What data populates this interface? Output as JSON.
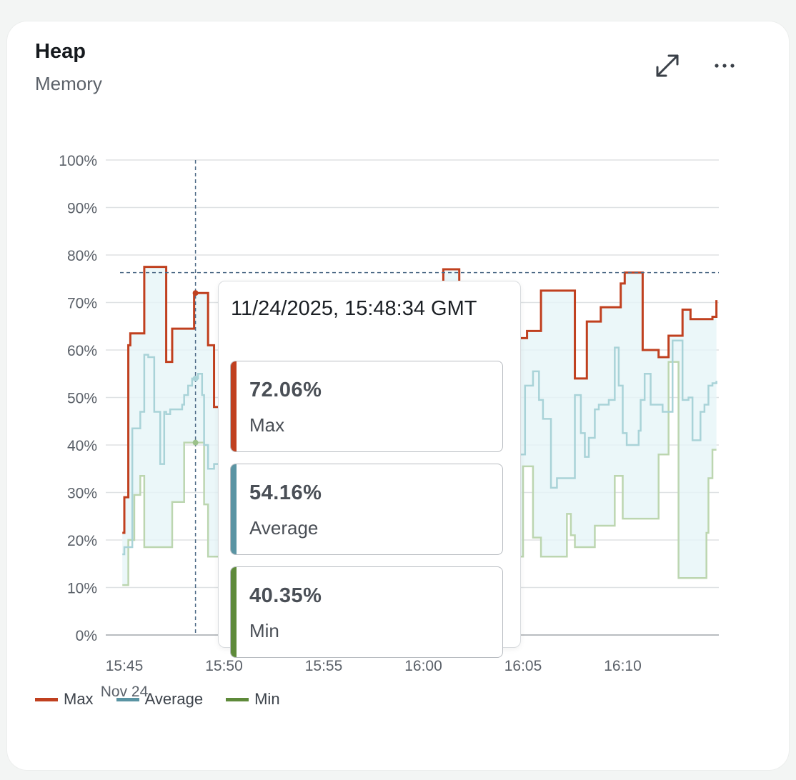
{
  "card": {
    "title": "Heap",
    "subtitle": "Memory"
  },
  "toolbar": {
    "expand_icon": "expand-arrows-icon",
    "more_icon": "more-dots-icon"
  },
  "colors": {
    "max": "#c0401f",
    "average": "#5a94a3",
    "min": "#5e8a3a",
    "fill": "#e6f5f7",
    "grid": "#dfe2e4",
    "crosshair": "#4d6a86"
  },
  "chart_data": {
    "type": "line",
    "ylim": [
      0,
      100
    ],
    "y_ticks": [
      "0%",
      "10%",
      "20%",
      "30%",
      "40%",
      "50%",
      "60%",
      "70%",
      "80%",
      "90%",
      "100%"
    ],
    "x_ticks": [
      {
        "t": 0,
        "label": "15:45",
        "sub": "Nov 24"
      },
      {
        "t": 5,
        "label": "15:50",
        "sub": ""
      },
      {
        "t": 10,
        "label": "15:55",
        "sub": ""
      },
      {
        "t": 15,
        "label": "16:00",
        "sub": ""
      },
      {
        "t": 20,
        "label": "16:05",
        "sub": ""
      },
      {
        "t": 25,
        "label": "16:10",
        "sub": ""
      }
    ],
    "x_unit": "minutes since 15:45",
    "xlim": [
      -0.2,
      29.7
    ],
    "crosshair": {
      "x": 3.57,
      "y": 76.3
    },
    "series": [
      {
        "name": "Max",
        "key": "max",
        "x": [
          -0.1,
          0,
          0.2,
          0.3,
          0.9,
          1,
          2,
          2.1,
          2.4,
          3.4,
          3.5,
          4.1,
          4.2,
          4.5,
          4.8,
          5.3,
          16,
          16.8,
          17.6,
          18.2,
          18.5,
          19.1,
          19.4,
          19.8,
          20.2,
          20.9,
          21.9,
          22.6,
          23,
          23.2,
          23.9,
          24.2,
          24.9,
          25.1,
          25.6,
          25.8,
          26,
          26.2,
          26.8,
          27.3,
          28,
          28.4,
          29.5,
          29.7
        ],
        "y": [
          21.5,
          29,
          61,
          63.5,
          63.5,
          77.5,
          77.5,
          57.5,
          64.5,
          64.5,
          72,
          72,
          61,
          48,
          51.5,
          51.5,
          77,
          73,
          69,
          69,
          66.5,
          66.5,
          62.5,
          62.5,
          64,
          72.5,
          72.5,
          54,
          54,
          66,
          69,
          69,
          74,
          76.3,
          76.3,
          76.3,
          60,
          60,
          58.5,
          63,
          68.5,
          66.5,
          67,
          70.5
        ]
      },
      {
        "name": "Average",
        "key": "average",
        "x": [
          -0.1,
          0,
          0.2,
          0.4,
          0.8,
          1,
          1.2,
          1.5,
          1.8,
          2,
          2.1,
          2.3,
          2.6,
          2.9,
          3,
          3.2,
          3.4,
          3.5,
          3.7,
          3.9,
          4,
          4.2,
          4.5,
          4.8,
          5.3,
          20.1,
          20.5,
          20.8,
          21,
          21.4,
          21.5,
          21.7,
          22.4,
          22.6,
          22.9,
          23.1,
          23.3,
          23.6,
          23.8,
          24.3,
          24.6,
          24.8,
          25,
          25.2,
          25.4,
          25.8,
          25.9,
          26.1,
          26.4,
          27,
          27.5,
          28,
          28.3,
          28.5,
          28.9,
          29.1,
          29.3,
          29.5,
          29.7
        ],
        "y": [
          17,
          18.5,
          18.5,
          43.5,
          47,
          59,
          58.5,
          47,
          36,
          47,
          46.5,
          47.5,
          47.5,
          48.5,
          50.5,
          52.5,
          54,
          54,
          55,
          50.5,
          40,
          35,
          36,
          38,
          38,
          52.5,
          55.5,
          49.5,
          45.5,
          31,
          31,
          33,
          33,
          50.5,
          42.5,
          37.5,
          41.5,
          47.5,
          48.5,
          49.5,
          60.5,
          52.5,
          42.5,
          40,
          40,
          43,
          49.5,
          55,
          48.5,
          47,
          62,
          49.5,
          50,
          41,
          47,
          48.5,
          52.5,
          53,
          53.5
        ]
      },
      {
        "name": "Min",
        "key": "min",
        "x": [
          -0.1,
          0,
          0.2,
          0.5,
          0.8,
          1,
          1.4,
          2.4,
          3,
          3.5,
          4,
          4.1,
          4.2,
          4.5,
          4.8,
          5.3,
          20,
          20.5,
          20.9,
          21.3,
          22.2,
          22.4,
          22.6,
          23.2,
          23.6,
          24.1,
          24.6,
          25,
          25.6,
          26.8,
          27.3,
          27.8,
          28.5,
          29.2,
          29.3,
          29.5,
          29.7
        ],
        "y": [
          10.5,
          10.5,
          20,
          29.5,
          33.5,
          18.5,
          18.5,
          28,
          40.5,
          40.5,
          27.5,
          27.5,
          16.5,
          16.5,
          16.5,
          16.5,
          35.5,
          20.5,
          16.5,
          16.5,
          25.5,
          21,
          18.5,
          18.5,
          23,
          23,
          33.5,
          24.5,
          24.5,
          38,
          57.5,
          12,
          12,
          21.5,
          33,
          39,
          39
        ]
      }
    ],
    "tooltip": {
      "timestamp": "11/24/2025, 15:48:34 GMT",
      "rows": [
        {
          "key": "max",
          "value": "72.06%",
          "label": "Max"
        },
        {
          "key": "average",
          "value": "54.16%",
          "label": "Average"
        },
        {
          "key": "min",
          "value": "40.35%",
          "label": "Min"
        }
      ]
    },
    "legend": [
      {
        "key": "max",
        "label": "Max"
      },
      {
        "key": "average",
        "label": "Average"
      },
      {
        "key": "min",
        "label": "Min"
      }
    ],
    "legend_position": "bottom-left",
    "grid": true
  }
}
